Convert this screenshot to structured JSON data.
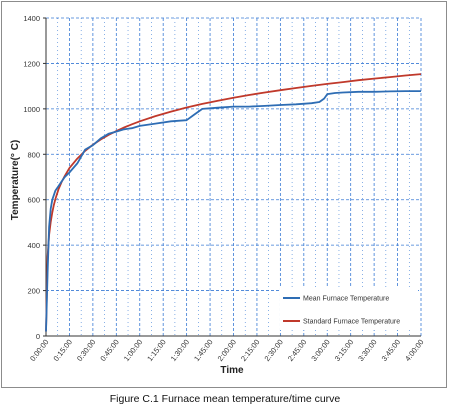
{
  "caption": "Figure C.1 Furnace mean temperature/time curve",
  "chart_data": {
    "type": "line",
    "xlabel": "Time",
    "ylabel": "Temperature(° C)",
    "x_ticks": [
      "0:00:00",
      "0:15:00",
      "0:30:00",
      "0:45:00",
      "1:00:00",
      "1:15:00",
      "1:30:00",
      "1:45:00",
      "2:00:00",
      "2:15:00",
      "2:30:00",
      "2:45:00",
      "3:00:00",
      "3:15:00",
      "3:30:00",
      "3:45:00",
      "4:00:00"
    ],
    "x_range_min": [
      0,
      240
    ],
    "y_ticks": [
      0,
      200,
      400,
      600,
      800,
      1000,
      1200,
      1400
    ],
    "ylim": [
      0,
      1400
    ],
    "grid": true,
    "legend_position": "bottom-right",
    "series": [
      {
        "name": "Mean Furnace Temperature",
        "color": "#2e6db4",
        "x_min": [
          0,
          1,
          2,
          3,
          4,
          6,
          8,
          10,
          12,
          15,
          20,
          25,
          30,
          35,
          40,
          45,
          50,
          55,
          60,
          70,
          80,
          90,
          95,
          100,
          110,
          120,
          130,
          140,
          150,
          160,
          170,
          175,
          178,
          180,
          185,
          190,
          200,
          210,
          220,
          230,
          240
        ],
        "y": [
          20,
          280,
          480,
          560,
          600,
          640,
          660,
          680,
          700,
          720,
          760,
          820,
          840,
          870,
          890,
          900,
          910,
          915,
          925,
          935,
          945,
          950,
          975,
          1000,
          1005,
          1010,
          1010,
          1013,
          1017,
          1020,
          1025,
          1030,
          1045,
          1065,
          1070,
          1072,
          1075,
          1075,
          1077,
          1078,
          1078
        ]
      },
      {
        "name": "Standard Furnace Temperature",
        "color": "#c0392b",
        "x_min": [
          0,
          1,
          2,
          3,
          4,
          5,
          6,
          8,
          10,
          12,
          15,
          20,
          25,
          30,
          35,
          40,
          45,
          50,
          55,
          60,
          70,
          80,
          90,
          100,
          110,
          120,
          130,
          140,
          150,
          160,
          170,
          180,
          190,
          200,
          210,
          220,
          230,
          240
        ],
        "y": [
          20,
          349,
          445,
          502,
          544,
          576,
          603,
          646,
          678,
          705,
          739,
          781,
          815,
          842,
          865,
          885,
          902,
          918,
          932,
          945,
          968,
          988,
          1006,
          1022,
          1036,
          1049,
          1061,
          1072,
          1082,
          1092,
          1101,
          1110,
          1118,
          1126,
          1133,
          1140,
          1147,
          1153
        ]
      }
    ]
  }
}
